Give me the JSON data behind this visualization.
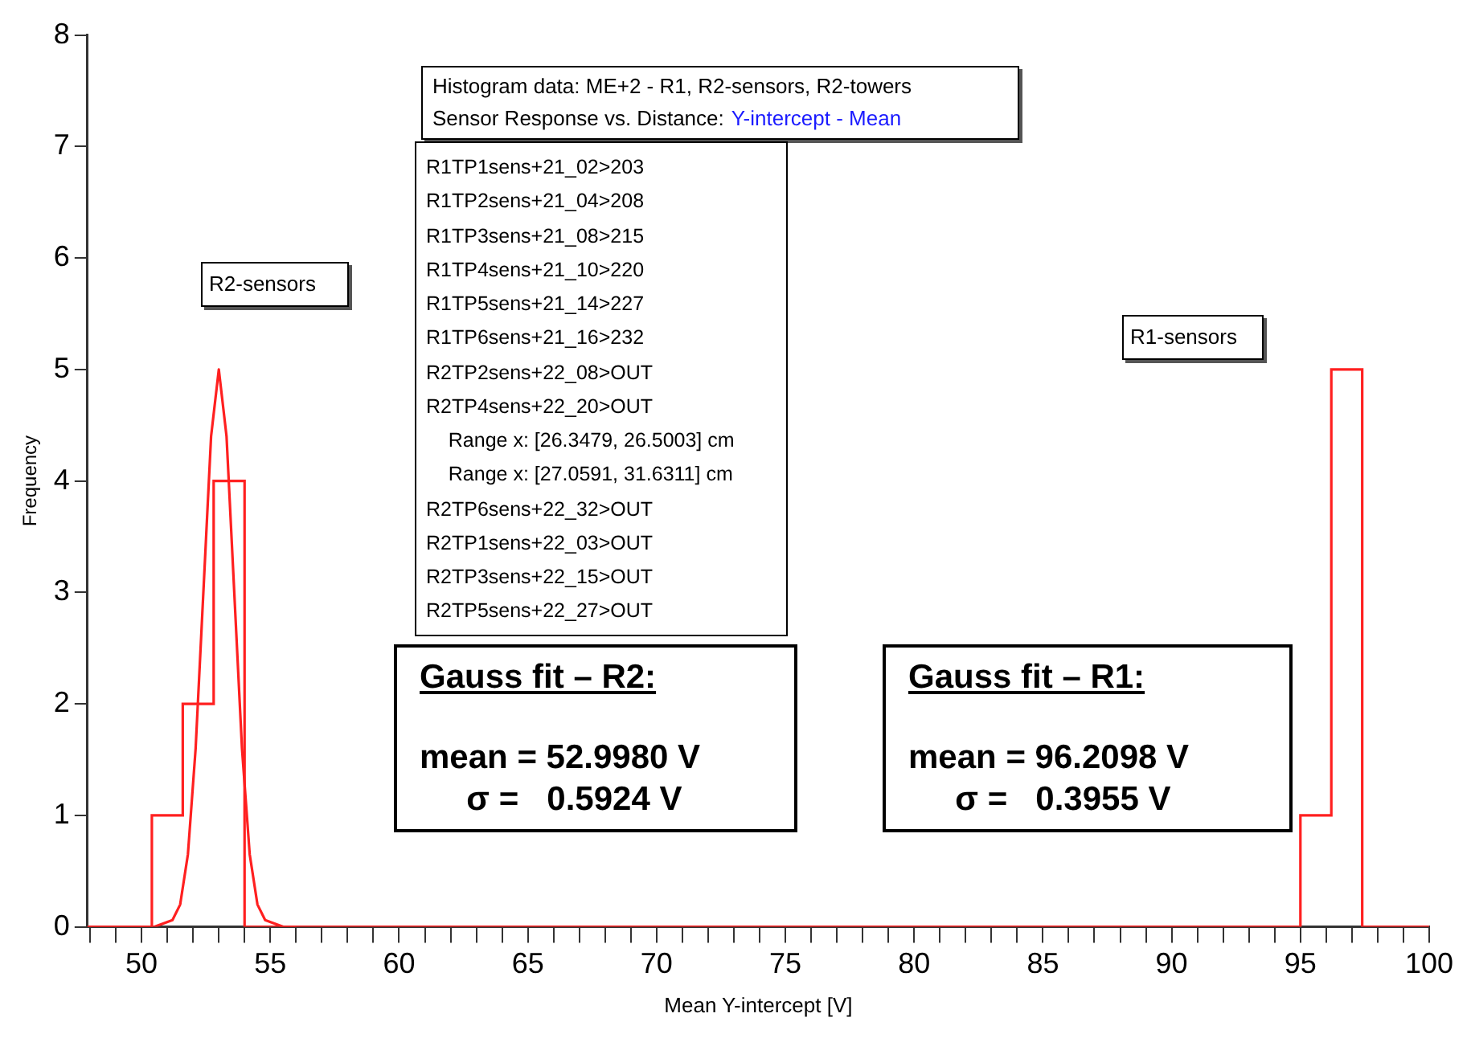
{
  "chart_data": {
    "type": "histogram",
    "xlabel": "Mean Y-intercept [V]",
    "ylabel": "Frequency",
    "xlim": [
      47.9,
      100
    ],
    "ylim": [
      0,
      8
    ],
    "xticks": [
      {
        "value": 48,
        "label": null
      },
      {
        "value": 49,
        "label": null
      },
      50,
      {
        "value": 51,
        "label": null
      },
      {
        "value": 52,
        "label": null
      },
      {
        "value": 53,
        "label": null
      },
      {
        "value": 54,
        "label": null
      },
      55,
      {
        "value": 56,
        "label": null
      },
      {
        "value": 57,
        "label": null
      },
      {
        "value": 58,
        "label": null
      },
      {
        "value": 59,
        "label": null
      },
      60,
      {
        "value": 61,
        "label": null
      },
      {
        "value": 62,
        "label": null
      },
      {
        "value": 63,
        "label": null
      },
      {
        "value": 64,
        "label": null
      },
      65,
      {
        "value": 66,
        "label": null
      },
      {
        "value": 67,
        "label": null
      },
      {
        "value": 68,
        "label": null
      },
      {
        "value": 69,
        "label": null
      },
      70,
      {
        "value": 71,
        "label": null
      },
      {
        "value": 72,
        "label": null
      },
      {
        "value": 73,
        "label": null
      },
      {
        "value": 74,
        "label": null
      },
      75,
      {
        "value": 76,
        "label": null
      },
      {
        "value": 77,
        "label": null
      },
      {
        "value": 78,
        "label": null
      },
      {
        "value": 79,
        "label": null
      },
      80,
      {
        "value": 81,
        "label": null
      },
      {
        "value": 82,
        "label": null
      },
      {
        "value": 83,
        "label": null
      },
      {
        "value": 84,
        "label": null
      },
      85,
      {
        "value": 86,
        "label": null
      },
      {
        "value": 87,
        "label": null
      },
      {
        "value": 88,
        "label": null
      },
      {
        "value": 89,
        "label": null
      },
      90,
      {
        "value": 91,
        "label": null
      },
      {
        "value": 92,
        "label": null
      },
      {
        "value": 93,
        "label": null
      },
      {
        "value": 94,
        "label": null
      },
      95,
      {
        "value": 96,
        "label": null
      },
      {
        "value": 97,
        "label": null
      },
      {
        "value": 98,
        "label": null
      },
      {
        "value": 99,
        "label": null
      },
      100
    ],
    "yticks": [
      0,
      1,
      2,
      3,
      4,
      5,
      6,
      7,
      8
    ],
    "grid": false,
    "legend": false,
    "marker": "none",
    "series": [
      {
        "type": "histogram",
        "color": "#ff2020",
        "bins": [
          47.9,
          50.4,
          51.6,
          52.8,
          54,
          95,
          96.2,
          97.4,
          100
        ],
        "values": [
          0,
          1,
          2,
          4,
          0,
          1,
          5,
          0
        ]
      },
      {
        "type": "line",
        "color": "#ff2020",
        "x": [
          47.9,
          50.5,
          51.2,
          51.5,
          51.8,
          52.1,
          52.4,
          52.7,
          53,
          53.3,
          53.6,
          53.9,
          54.2,
          54.5,
          54.8,
          55.5,
          56
        ],
        "values": [
          0,
          0,
          0.06,
          0.2,
          0.65,
          1.6,
          3,
          4.4,
          5,
          4.4,
          3,
          1.6,
          0.65,
          0.2,
          0.06,
          0,
          0
        ]
      }
    ],
    "annotations": [
      "Histogram data: ME+2 - R1, R2-sensors, R2-towers",
      "Sensor Response vs. Distance:",
      "Y-intercept - Mean",
      "R1TP1sens+21_02>203\nR1TP2sens+21_04>208\nR1TP3sens+21_08>215\nR1TP4sens+21_10>220\nR1TP5sens+21_14>227\nR1TP6sens+21_16>232\nR2TP2sens+22_08>OUT\nR2TP4sens+22_20>OUT\n    Range x: [26.3479, 26.5003] cm\n    Range x: [27.0591, 31.6311] cm\nR2TP6sens+22_32>OUT\nR2TP1sens+22_03>OUT\nR2TP3sens+22_15>OUT\nR2TP5sens+22_27>OUT",
      "R2-sensors",
      "R1-sensors",
      "Gauss fit – R2:\n\nmean = 52.9980 V\n     σ =   0.5924 V",
      "Gauss fit – R1:\n\nmean = 96.2098 V\n     σ =   0.3955 V"
    ]
  }
}
